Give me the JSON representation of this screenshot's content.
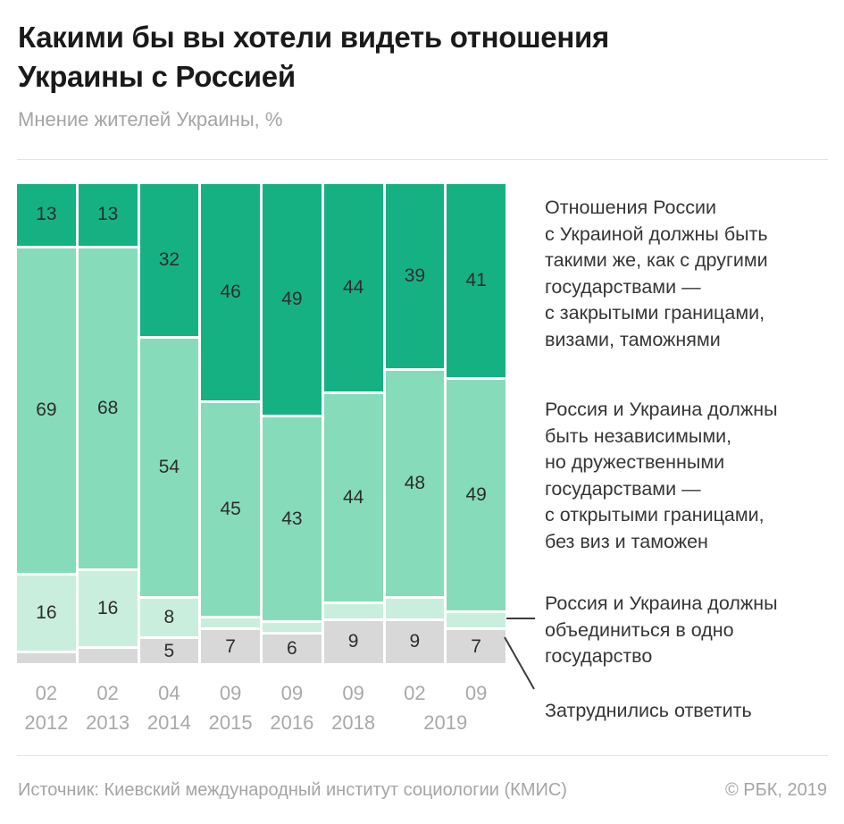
{
  "header": {
    "title_lines": [
      "Какими бы вы хотели видеть отношения",
      "Украины с Россией"
    ],
    "subtitle": "Мнение жителей Украины, %"
  },
  "chart_data": {
    "type": "bar",
    "stacked": true,
    "unit": "%",
    "title": "Какими бы вы хотели видеть отношения Украины с Россией",
    "subtitle": "Мнение жителей Украины, %",
    "ylim": [
      0,
      100
    ],
    "grid": false,
    "legend_position": "right",
    "categories": [
      "02 2012",
      "02 2013",
      "04 2014",
      "09 2015",
      "09 2016",
      "09 2018",
      "02 2019",
      "09 2019"
    ],
    "x_tick_months": [
      "02",
      "02",
      "04",
      "09",
      "09",
      "09",
      "02",
      "09"
    ],
    "x_tick_years": [
      {
        "text": "2012",
        "bars": [
          0
        ]
      },
      {
        "text": "2013",
        "bars": [
          1
        ]
      },
      {
        "text": "2014",
        "bars": [
          2
        ]
      },
      {
        "text": "2015",
        "bars": [
          3
        ]
      },
      {
        "text": "2016",
        "bars": [
          4
        ]
      },
      {
        "text": "2018",
        "bars": [
          5
        ]
      },
      {
        "text": "2019",
        "bars": [
          6,
          7
        ]
      }
    ],
    "series": [
      {
        "name": "same-as-other-states",
        "legend": "Отношения России с Украиной должны быть такими же, как с другими государствами — с закрытыми границами, визами, таможнями",
        "color": "#16b182",
        "values": [
          13,
          13,
          32,
          46,
          49,
          44,
          39,
          41
        ],
        "labels": [
          13,
          13,
          32,
          46,
          49,
          44,
          39,
          41
        ]
      },
      {
        "name": "independent-friendly",
        "legend": "Россия и Украина должны быть независимыми, но дружественными государствами — с открытыми границами, без виз и таможен",
        "color": "#85dbba",
        "values": [
          69,
          68,
          54,
          45,
          43,
          44,
          48,
          49
        ],
        "labels": [
          69,
          68,
          54,
          45,
          43,
          44,
          48,
          49
        ]
      },
      {
        "name": "unite-one-state",
        "legend": "Россия и Украина должны объединиться в одно государство",
        "color": "#c9eedd",
        "values": [
          16,
          16,
          8,
          2,
          2,
          3,
          4,
          3
        ],
        "labels": [
          16,
          16,
          8,
          null,
          null,
          null,
          null,
          null
        ]
      },
      {
        "name": "undecided",
        "legend": "Затруднились ответить",
        "color": "#d8d8d8",
        "values": [
          2,
          3,
          5,
          7,
          6,
          9,
          9,
          7
        ],
        "labels": [
          null,
          null,
          5,
          7,
          6,
          9,
          9,
          7
        ]
      }
    ]
  },
  "legend": [
    {
      "series": "same-as-other-states",
      "lines": [
        "Отношения России",
        "с Украиной должны быть",
        "такими же, как с другими",
        "государствами —",
        "с закрытыми границами,",
        "визами, таможнями"
      ]
    },
    {
      "series": "independent-friendly",
      "lines": [
        "Россия и Украина должны",
        "быть независимыми,",
        "но дружественными",
        "государствами —",
        "с открытыми границами,",
        "без виз и таможен"
      ]
    },
    {
      "series": "unite-one-state",
      "lines": [
        "Россия и Украина должны",
        "объединиться в одно",
        "государство"
      ]
    },
    {
      "series": "undecided",
      "lines": [
        "Затруднились ответить"
      ]
    }
  ],
  "footer": {
    "source": "Источник: Киевский международный институт социологии (КМИС)",
    "copyright": "© РБК, 2019"
  }
}
